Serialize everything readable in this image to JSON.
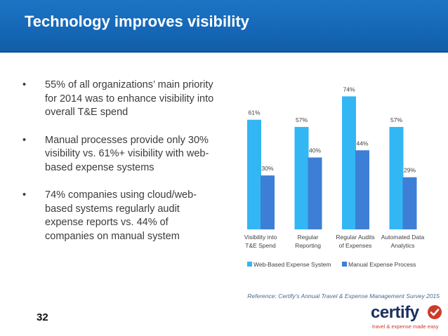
{
  "slide": {
    "title": "Technology improves visibility",
    "page_number": "32",
    "reference": "Reference: Certify's Annual Travel & Expense Management Survey 2015"
  },
  "bullets": [
    "55% of all organizations’ main priority for 2014 was to enhance visibility into overall T&E spend",
    "Manual processes provide only 30% visibility vs. 61%+ visibility with web-based expense systems",
    "74% companies using cloud/web-based systems regularly audit expense reports vs. 44% of companies on manual system"
  ],
  "bullet_char": "•",
  "logo": {
    "word": "certify",
    "tagline": "travel & expense made easy"
  },
  "colors": {
    "header": "#1567b6",
    "web_series": "#33b6f4",
    "manual_series": "#3d7fd6",
    "logo_text": "#1b2f60",
    "logo_accent": "#cc3b2b"
  },
  "chart_data": {
    "type": "bar",
    "categories": [
      [
        "Visibility into",
        "T&E Spend"
      ],
      [
        "Regular",
        "Reporting"
      ],
      [
        "Regular Audits",
        "of Expenses"
      ],
      [
        "Automated Data",
        "Analytics"
      ]
    ],
    "series": [
      {
        "name": "Web-Based Expense System",
        "values": [
          61,
          57,
          74,
          57
        ],
        "labels": [
          "61%",
          "57%",
          "74%",
          "57%"
        ],
        "color": "#33b6f4"
      },
      {
        "name": "Manual Expense Process",
        "values": [
          30,
          40,
          44,
          29
        ],
        "labels": [
          "30%",
          "40%",
          "44%",
          "29%"
        ],
        "color": "#3d7fd6"
      }
    ],
    "ylim": [
      0,
      80
    ],
    "legend": "bottom",
    "grid": false,
    "title": "",
    "xlabel": "",
    "ylabel": ""
  }
}
